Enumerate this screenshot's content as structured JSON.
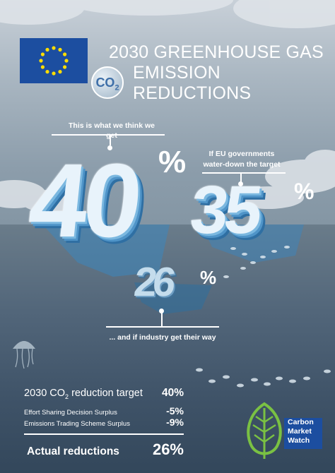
{
  "header": {
    "title_line1": "2030 GREENHOUSE GAS",
    "title_line2": "EMISSION REDUCTIONS",
    "co2_badge_main": "CO",
    "co2_badge_sub": "2",
    "flag_icon": "eu-flag-icon"
  },
  "icebergs": [
    {
      "number": "40",
      "percent": "%",
      "annotation": "This is what we think we get"
    },
    {
      "number": "35",
      "percent": "%",
      "annotation_line1": "If EU governments",
      "annotation_line2": "water-down the target"
    },
    {
      "number": "26",
      "percent": "%",
      "annotation": "... and if industry get their way"
    }
  ],
  "summary": {
    "rows": [
      {
        "label_pre": "2030 CO",
        "label_sub": "2",
        "label_post": " reduction target",
        "value": "40%"
      },
      {
        "label": "Effort Sharing Decision Surplus",
        "value": "-5%"
      },
      {
        "label": "Emissions Trading Scheme Surplus",
        "value": "-9%"
      }
    ],
    "total_label": "Actual reductions",
    "total_value": "26%"
  },
  "logo": {
    "line1": "Carbon",
    "line2": "Market",
    "line3": "Watch",
    "accent_color": "#1c4ea0",
    "leaf_color": "#7ac143"
  },
  "colors": {
    "sky": "#a9b6c1",
    "sea": "#3f5368",
    "eu_blue": "#1c4ea0",
    "eu_gold": "#ffdd00"
  }
}
